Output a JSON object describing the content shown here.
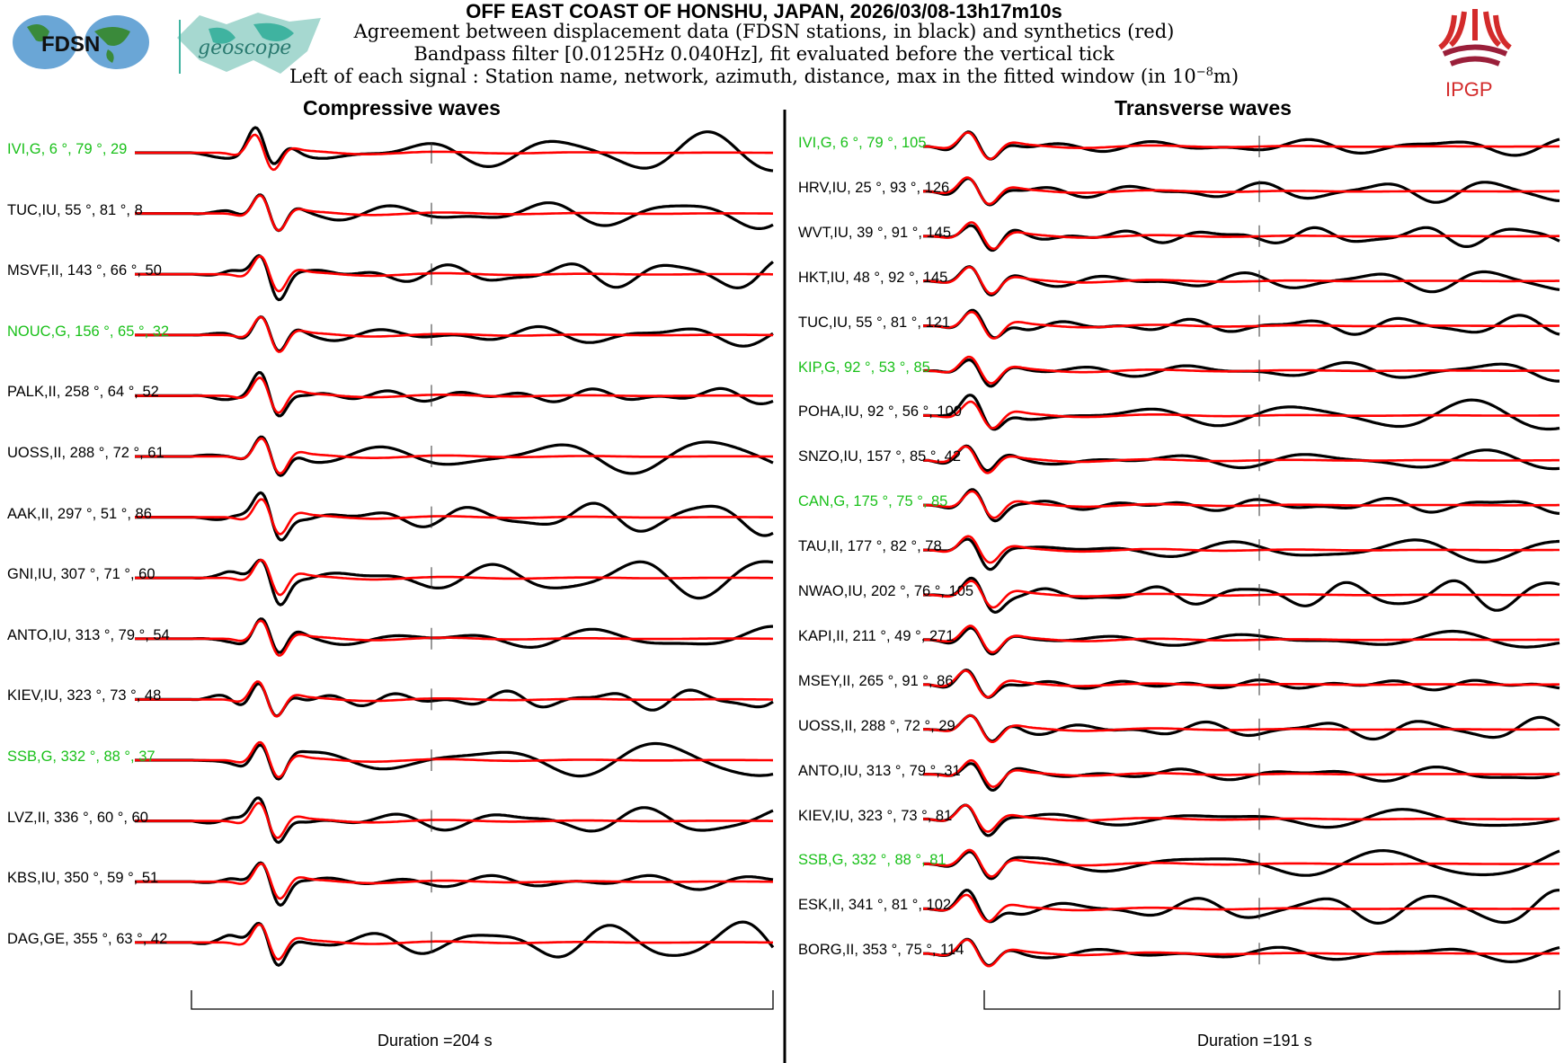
{
  "header": {
    "title": "OFF EAST COAST OF HONSHU, JAPAN, 2026/03/08-13h17m10s",
    "line1": "Agreement between displacement data (FDSN stations, in black) and synthetics (red)",
    "line2": "Bandpass filter [0.0125Hz 0.040Hz], fit evaluated before the vertical tick",
    "line3": "Left of each signal : Station name, network, azimuth, distance, max in the fitted window (in 10",
    "line3_exp": "−8",
    "line3_end": "m)"
  },
  "logos": {
    "fdsn": "FDSN",
    "geoscope": "geoscope",
    "ipgp": "IPGP"
  },
  "colors": {
    "data": "#000000",
    "synthetic": "#ff0000",
    "highlight": "#19c019"
  },
  "chart_data": [
    {
      "type": "line",
      "title": "Compressive waves",
      "xlabel": "Duration =204 s",
      "series": [
        "data (black)",
        "synthetics (red)"
      ],
      "stations": [
        {
          "label": "IVI,G, 6 °, 79 °, 29",
          "highlight": true
        },
        {
          "label": "TUC,IU, 55 °, 81 °, 8",
          "highlight": false
        },
        {
          "label": "MSVF,II, 143 °, 66 °, 50",
          "highlight": false
        },
        {
          "label": "NOUC,G, 156 °, 65 °, 32",
          "highlight": true
        },
        {
          "label": "PALK,II, 258 °, 64 °, 52",
          "highlight": false
        },
        {
          "label": "UOSS,II, 288 °, 72 °, 61",
          "highlight": false
        },
        {
          "label": "AAK,II, 297 °, 51 °, 86",
          "highlight": false
        },
        {
          "label": "GNI,IU, 307 °, 71 °, 60",
          "highlight": false
        },
        {
          "label": "ANTO,IU, 313 °, 79 °, 54",
          "highlight": false
        },
        {
          "label": "KIEV,IU, 323 °, 73 °, 48",
          "highlight": false
        },
        {
          "label": "SSB,G, 332 °, 88 °, 37",
          "highlight": true
        },
        {
          "label": "LVZ,II, 336 °, 60 °, 60",
          "highlight": false
        },
        {
          "label": "KBS,IU, 350 °, 59 °, 51",
          "highlight": false
        },
        {
          "label": "DAG,GE, 355 °, 63 °, 42",
          "highlight": false
        }
      ]
    },
    {
      "type": "line",
      "title": "Transverse waves",
      "xlabel": "Duration =191 s",
      "series": [
        "data (black)",
        "synthetics (red)"
      ],
      "stations": [
        {
          "label": "IVI,G, 6 °, 79 °, 105",
          "highlight": true
        },
        {
          "label": "HRV,IU, 25 °, 93 °, 126",
          "highlight": false
        },
        {
          "label": "WVT,IU, 39 °, 91 °, 145",
          "highlight": false
        },
        {
          "label": "HKT,IU, 48 °, 92 °, 145",
          "highlight": false
        },
        {
          "label": "TUC,IU, 55 °, 81 °, 121",
          "highlight": false
        },
        {
          "label": "KIP,G, 92 °, 53 °, 85",
          "highlight": true
        },
        {
          "label": "POHA,IU, 92 °, 56 °, 100",
          "highlight": false
        },
        {
          "label": "SNZO,IU, 157 °, 85 °, 42",
          "highlight": false
        },
        {
          "label": "CAN,G, 175 °, 75 °, 85",
          "highlight": true
        },
        {
          "label": "TAU,II, 177 °, 82 °, 78",
          "highlight": false
        },
        {
          "label": "NWAO,IU, 202 °, 76 °, 105",
          "highlight": false
        },
        {
          "label": "KAPI,II, 211 °, 49 °, 271",
          "highlight": false
        },
        {
          "label": "MSEY,II, 265 °, 91 °, 86",
          "highlight": false
        },
        {
          "label": "UOSS,II, 288 °, 72 °, 29",
          "highlight": false
        },
        {
          "label": "ANTO,IU, 313 °, 79 °, 31",
          "highlight": false
        },
        {
          "label": "KIEV,IU, 323 °, 73 °, 81",
          "highlight": false
        },
        {
          "label": "SSB,G, 332 °, 88 °, 81",
          "highlight": true
        },
        {
          "label": "ESK,II, 341 °, 81 °, 102",
          "highlight": false
        },
        {
          "label": "BORG,II, 353 °, 75 °, 114",
          "highlight": false
        }
      ]
    }
  ]
}
